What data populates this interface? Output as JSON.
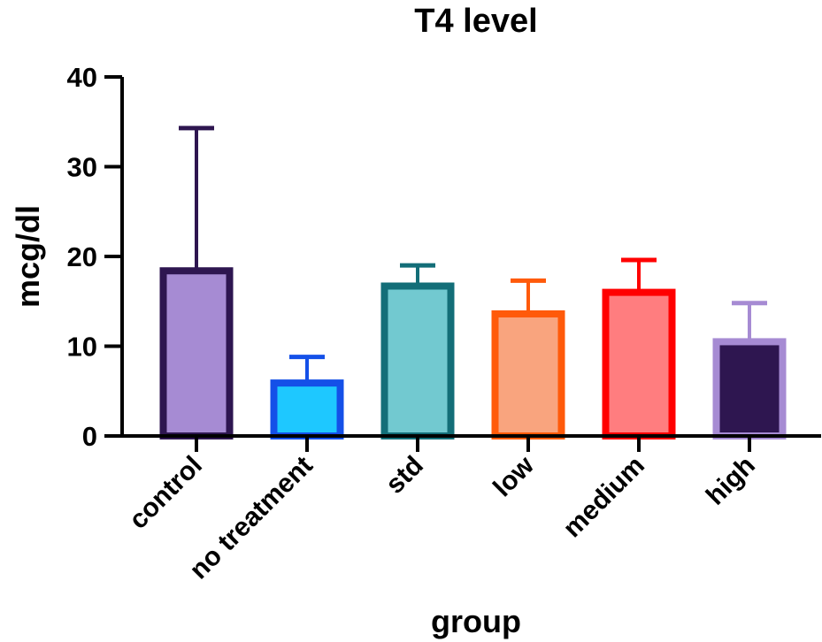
{
  "chart_data": {
    "type": "bar",
    "title": "T4 level",
    "xlabel": "group",
    "ylabel": "mcg/dl",
    "ylim": [
      0,
      40
    ],
    "yticks": [
      0,
      10,
      20,
      30,
      40
    ],
    "ytick_labels": [
      "0",
      "10",
      "20",
      "30",
      "40"
    ],
    "grid": false,
    "legend": "none",
    "categories": [
      "control",
      "no treatment",
      "std",
      "low",
      "medium",
      "high"
    ],
    "values": [
      18.4,
      5.9,
      16.7,
      13.6,
      16.0,
      10.5
    ],
    "error_upper": [
      34.3,
      8.8,
      19.0,
      17.3,
      19.6,
      14.8
    ],
    "error_type": "upper error bars (mean + SD)",
    "fill_colors": [
      "#A68BD3",
      "#1EC8FF",
      "#72C9D0",
      "#F9A47E",
      "#FF7D7F",
      "#2E1650"
    ],
    "border_colors": [
      "#2E1650",
      "#1450E8",
      "#136E78",
      "#FF5A0A",
      "#FF0000",
      "#A68BD3"
    ]
  }
}
